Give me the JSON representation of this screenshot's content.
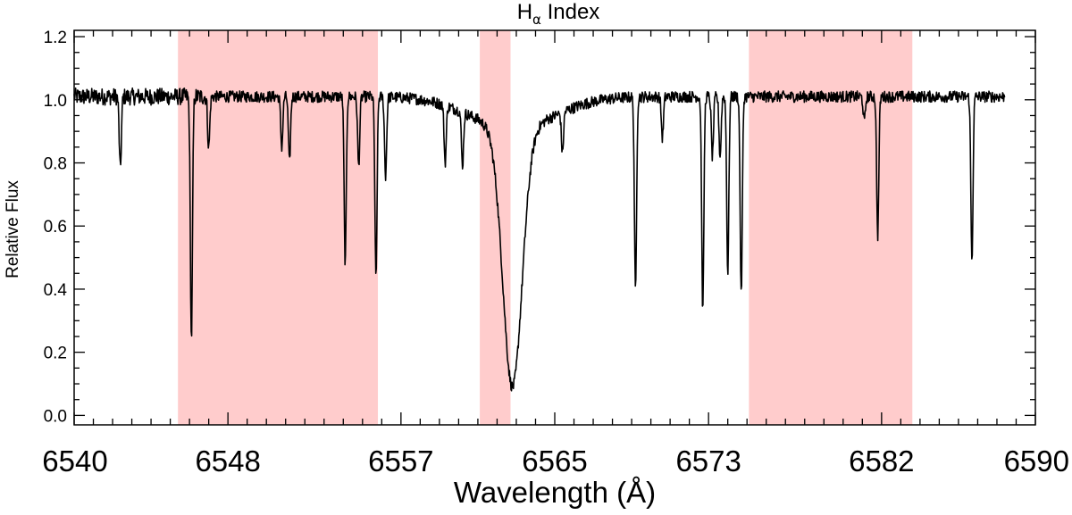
{
  "chart_data": {
    "type": "line",
    "title": "H",
    "title_subscript": "α",
    "title_suffix": " Index",
    "xlabel": "Wavelength (Å)",
    "ylabel": "Relative Flux",
    "xlim": [
      6540,
      6590
    ],
    "ylim": [
      -0.03,
      1.22
    ],
    "xticks": [
      6540,
      6548,
      6557,
      6565,
      6573,
      6582,
      6590
    ],
    "xtick_labels": [
      "6540",
      "6548",
      "6557",
      "6565",
      "6573",
      "6582",
      "6590"
    ],
    "yticks": [
      0.0,
      0.2,
      0.4,
      0.6,
      0.8,
      1.0,
      1.2
    ],
    "ytick_labels": [
      "0.0",
      "0.2",
      "0.4",
      "0.6",
      "0.8",
      "1.0",
      "1.2"
    ],
    "grid": false,
    "highlight_bands": [
      {
        "x0": 6545.4,
        "x1": 6555.8,
        "color": "#ffcccc"
      },
      {
        "x0": 6561.1,
        "x1": 6562.7,
        "color": "#ffcccc"
      },
      {
        "x0": 6575.1,
        "x1": 6583.6,
        "color": "#ffcccc"
      }
    ],
    "series": [
      {
        "color": "#000000",
        "continuum": 1.01,
        "noise_amplitude": 0.018,
        "x_range": [
          6540.0,
          6588.4
        ],
        "broad_features": [
          {
            "center": 6562.8,
            "depth": 0.82,
            "width": 0.5
          },
          {
            "center": 6562.8,
            "depth": 0.1,
            "width": 2.2
          }
        ],
        "absorption_lines": [
          {
            "center": 6542.4,
            "depth": 0.23
          },
          {
            "center": 6546.1,
            "depth": 0.77
          },
          {
            "center": 6547.0,
            "depth": 0.16
          },
          {
            "center": 6550.8,
            "depth": 0.16
          },
          {
            "center": 6551.2,
            "depth": 0.21
          },
          {
            "center": 6554.1,
            "depth": 0.53
          },
          {
            "center": 6554.8,
            "depth": 0.22
          },
          {
            "center": 6555.7,
            "depth": 0.58
          },
          {
            "center": 6556.2,
            "depth": 0.25
          },
          {
            "center": 6559.3,
            "depth": 0.18
          },
          {
            "center": 6560.2,
            "depth": 0.17
          },
          {
            "center": 6565.4,
            "depth": 0.13
          },
          {
            "center": 6569.2,
            "depth": 0.62
          },
          {
            "center": 6570.6,
            "depth": 0.13
          },
          {
            "center": 6572.7,
            "depth": 0.68
          },
          {
            "center": 6573.2,
            "depth": 0.19
          },
          {
            "center": 6573.6,
            "depth": 0.19
          },
          {
            "center": 6574.0,
            "depth": 0.56
          },
          {
            "center": 6574.7,
            "depth": 0.63
          },
          {
            "center": 6581.1,
            "depth": 0.08
          },
          {
            "center": 6581.8,
            "depth": 0.44
          },
          {
            "center": 6586.7,
            "depth": 0.52
          }
        ]
      }
    ]
  }
}
